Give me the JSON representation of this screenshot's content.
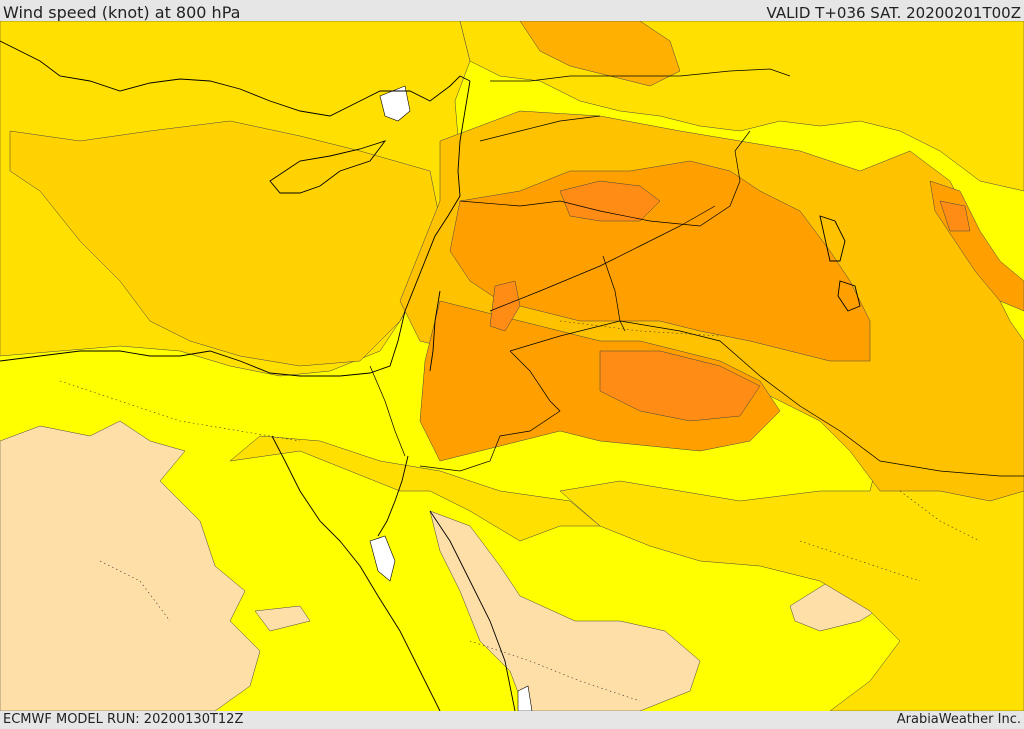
{
  "header": {
    "title": "Wind speed (knot) at 800 hPa",
    "valid": "VALID T+036 SAT. 20200201T00Z"
  },
  "footer": {
    "model_run": "ECMWF MODEL RUN: 20200130T12Z",
    "credit": "ArabiaWeather Inc."
  },
  "map": {
    "variable": "wind speed",
    "level_hpa": 800,
    "units": "knot",
    "colors": {
      "lowest": "#ffdfa8",
      "level1": "#ffff00",
      "level2": "#ffe000",
      "level3": "#ffc200",
      "level4": "#ffa000",
      "level5": "#ff8c14",
      "lake": "#ffffff",
      "boundary": "#000000"
    }
  }
}
